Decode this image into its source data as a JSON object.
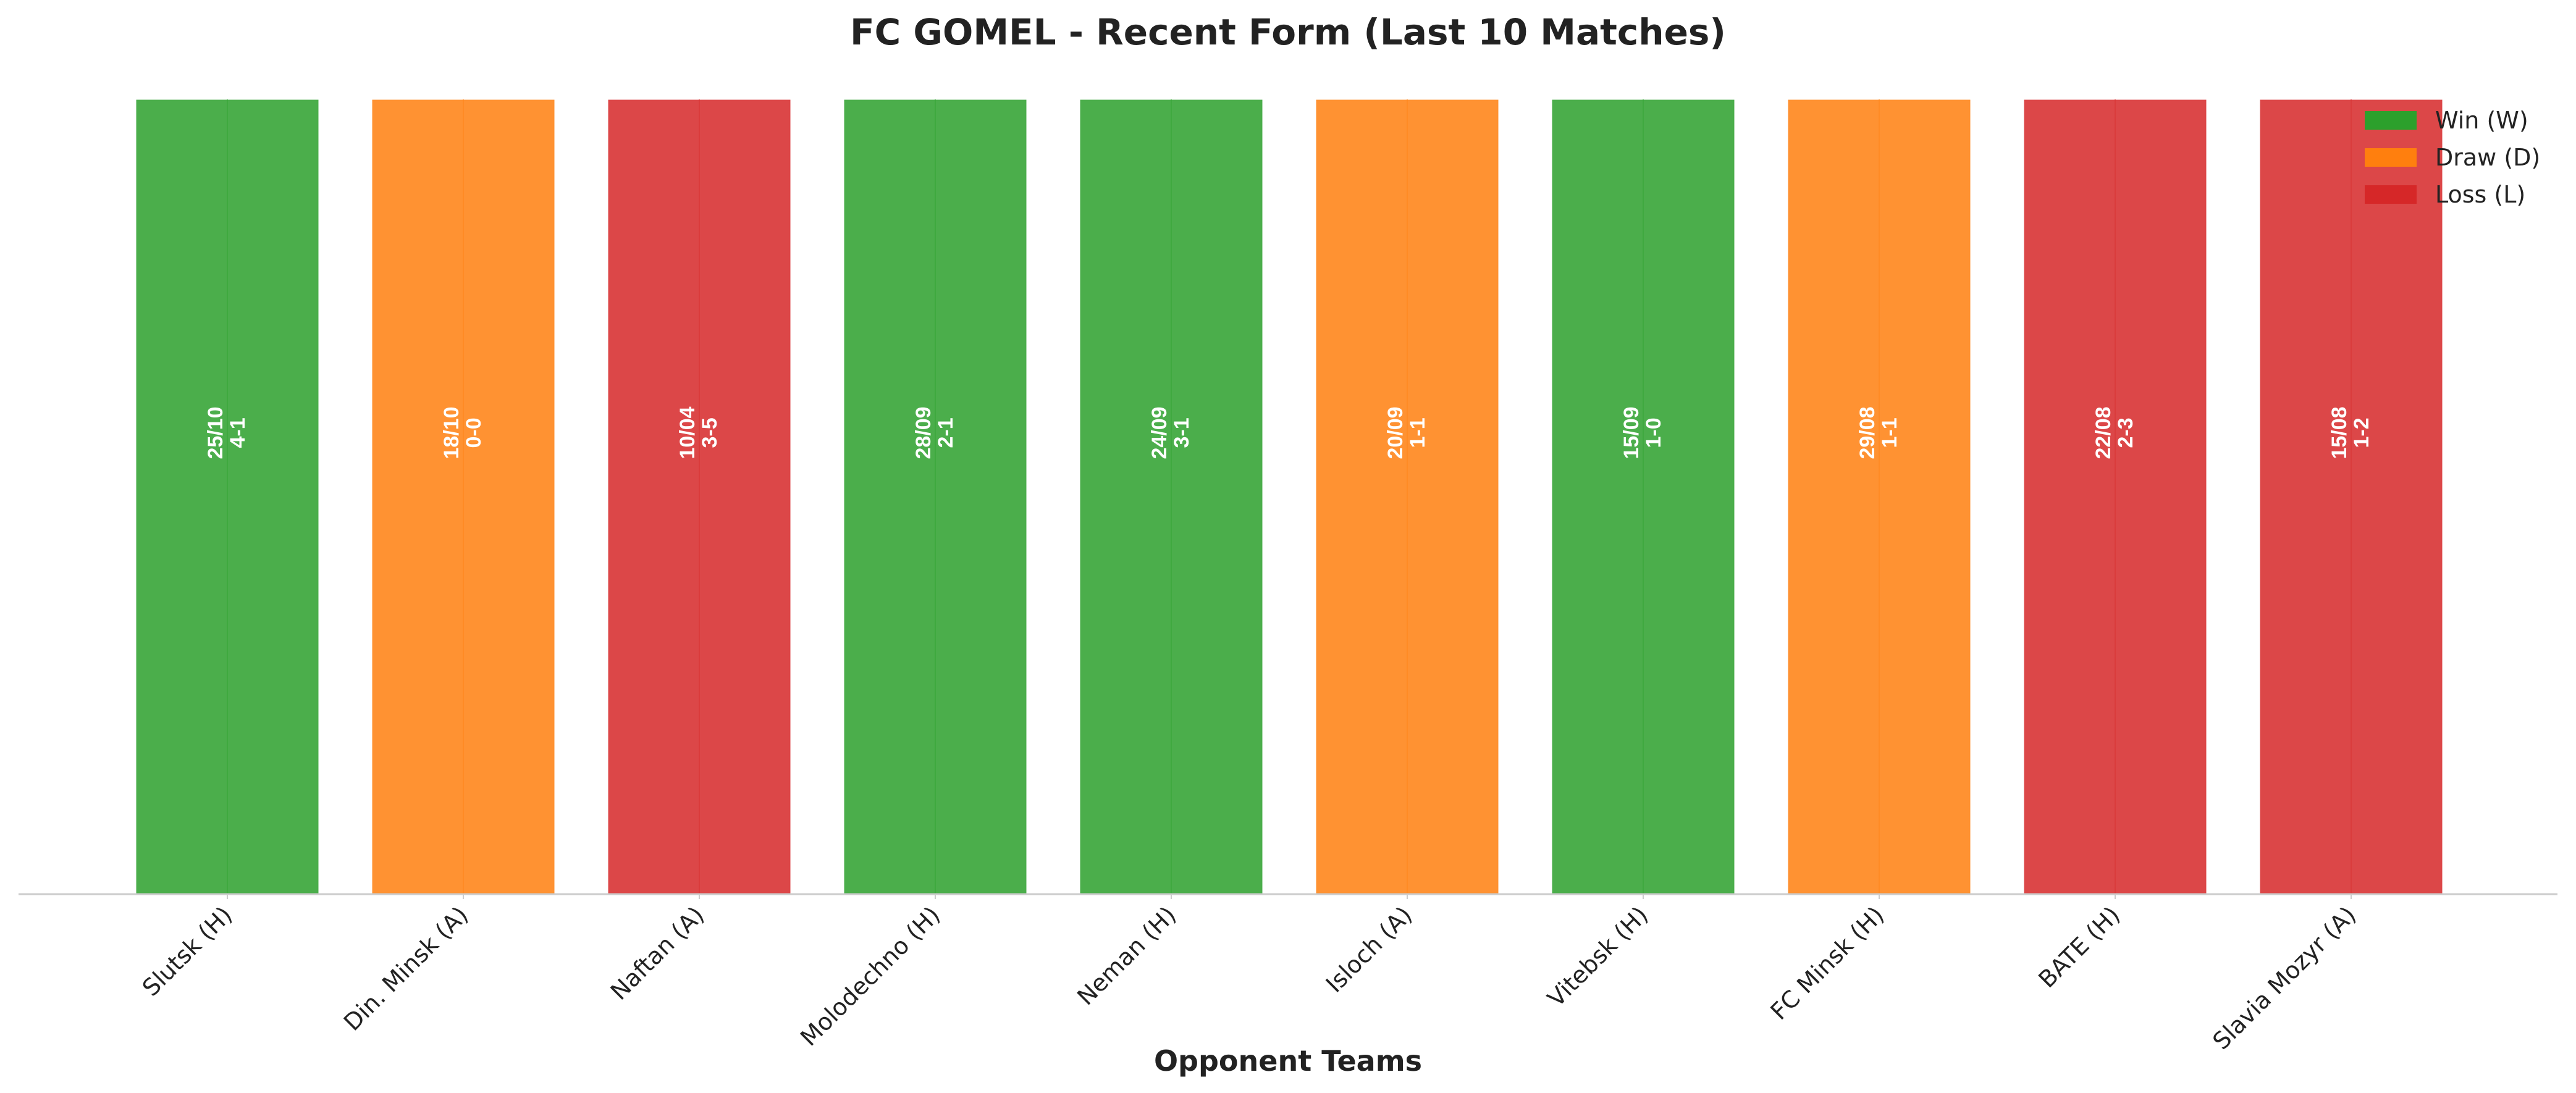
{
  "chart_data": {
    "type": "bar",
    "title": "FC GOMEL - Recent Form (Last 10 Matches)",
    "xlabel": "Opponent Teams",
    "ylabel": "",
    "ylim": [
      0,
      1
    ],
    "grid": false,
    "legend_position": "top-right",
    "categories": [
      "Slutsk (H)",
      "Din. Minsk (A)",
      "Naftan (A)",
      "Molodechno (H)",
      "Neman (H)",
      "Isloch (A)",
      "Vitebsk (H)",
      "FC Minsk (H)",
      "BATE (H)",
      "Slavia Mozyr (A)"
    ],
    "values": [
      1,
      1,
      1,
      1,
      1,
      1,
      1,
      1,
      1,
      1
    ],
    "results": [
      "W",
      "D",
      "L",
      "W",
      "W",
      "D",
      "W",
      "D",
      "L",
      "L"
    ],
    "dates": [
      "25/10",
      "18/10",
      "10/04",
      "28/09",
      "24/09",
      "20/09",
      "15/09",
      "29/08",
      "22/08",
      "15/08"
    ],
    "scores": [
      "4-1",
      "0-0",
      "3-5",
      "2-1",
      "3-1",
      "1-1",
      "1-0",
      "1-1",
      "2-3",
      "1-2"
    ],
    "legend": [
      {
        "key": "W",
        "label": "Win (W)",
        "color": "#2ca02c"
      },
      {
        "key": "D",
        "label": "Draw (D)",
        "color": "#ff7f0e"
      },
      {
        "key": "L",
        "label": "Loss (L)",
        "color": "#d62728"
      }
    ]
  }
}
